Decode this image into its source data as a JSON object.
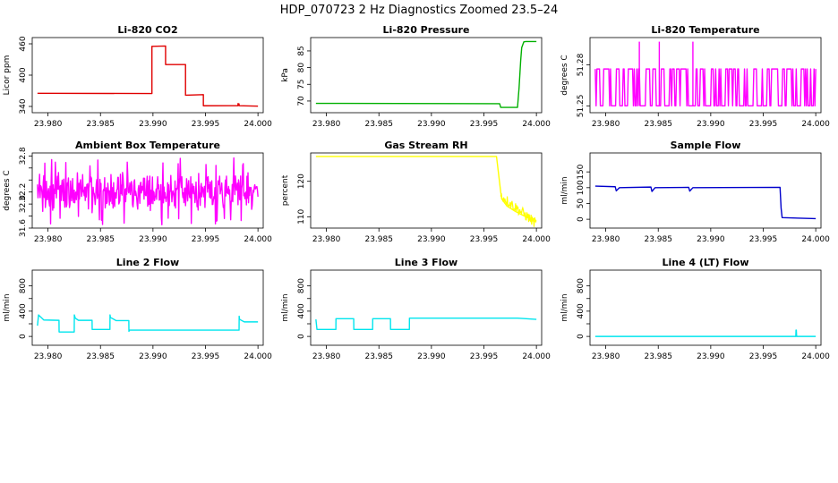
{
  "figure": {
    "title": "HDP_070723  2 Hz Diagnostics Zoomed 23.5–24"
  },
  "chart_data": [
    {
      "type": "line",
      "title": "Li-820 CO2",
      "ylabel": "Licor ppm",
      "color": "#e00000",
      "xlim": [
        23.9785,
        24.0005
      ],
      "ylim": [
        328,
        472
      ],
      "xticks": [
        23.98,
        23.985,
        23.99,
        23.995,
        24.0
      ],
      "xtick_labels": [
        "23.980",
        "23.985",
        "23.990",
        "23.995",
        "24.000"
      ],
      "yticks": [
        340,
        400,
        460
      ],
      "ytick_labels": [
        "340",
        "400",
        "460"
      ],
      "style": "step",
      "x": [
        23.979,
        23.9899,
        23.9899,
        23.9912,
        23.9912,
        23.9931,
        23.9931,
        23.9948,
        23.9948,
        23.9981,
        23.9981,
        23.9982,
        23.9982,
        24.0
      ],
      "y": [
        365,
        365,
        455,
        455,
        420,
        420,
        362,
        362,
        341,
        341,
        345,
        345,
        341,
        341
      ]
    },
    {
      "type": "line",
      "title": "Li-820 Pressure",
      "ylabel": "kPa",
      "color": "#00b000",
      "xlim": [
        23.9785,
        24.0005
      ],
      "ylim": [
        66.5,
        89
      ],
      "xticks": [
        23.98,
        23.985,
        23.99,
        23.995,
        24.0
      ],
      "xtick_labels": [
        "23.980",
        "23.985",
        "23.990",
        "23.995",
        "24.000"
      ],
      "yticks": [
        70,
        75,
        80,
        85
      ],
      "ytick_labels": [
        "70",
        "75",
        "80",
        "85"
      ],
      "x": [
        23.979,
        23.9965,
        23.9966,
        23.9982,
        23.99835,
        23.9985,
        23.9986,
        23.9988,
        23.999,
        24.0
      ],
      "y": [
        69.3,
        69.2,
        68.1,
        68.1,
        74,
        82,
        86,
        87.7,
        87.8,
        87.8
      ]
    },
    {
      "type": "line",
      "title": "Li-820 Temperature",
      "ylabel": "degrees C",
      "color": "#ff00ff",
      "xlim": [
        23.9785,
        24.0005
      ],
      "ylim": [
        51.245,
        51.3
      ],
      "xticks": [
        23.98,
        23.985,
        23.99,
        23.995,
        24.0
      ],
      "xtick_labels": [
        "23.980",
        "23.985",
        "23.990",
        "23.995",
        "24.000"
      ],
      "yticks": [
        51.25,
        51.28
      ],
      "ytick_labels": [
        "51.25",
        "51.28"
      ],
      "levels": [
        51.25,
        51.277
      ],
      "spike_value": 51.297,
      "spike_x": [
        23.9832,
        23.9851,
        23.9883
      ]
    },
    {
      "type": "line",
      "title": "Ambient Box Temperature",
      "ylabel": "degrees C",
      "color": "#ff00ff",
      "xlim": [
        23.9785,
        24.0005
      ],
      "ylim": [
        31.6,
        32.85
      ],
      "xticks": [
        23.98,
        23.985,
        23.99,
        23.995,
        24.0
      ],
      "xtick_labels": [
        "23.980",
        "23.985",
        "23.990",
        "23.995",
        "24.000"
      ],
      "yticks": [
        31.6,
        31.8,
        32.0,
        32.2,
        32.4,
        32.6,
        32.8
      ],
      "ytick_labels": [
        "31.6",
        "",
        "32.0",
        "32.2",
        "",
        "",
        "32.8"
      ],
      "mean": 32.2,
      "range": [
        31.65,
        32.78
      ]
    },
    {
      "type": "line",
      "title": "Gas Stream RH",
      "ylabel": "percent",
      "color": "#ffff00",
      "xlim": [
        23.9785,
        24.0005
      ],
      "ylim": [
        106.8,
        128
      ],
      "xticks": [
        23.98,
        23.985,
        23.99,
        23.995,
        24.0
      ],
      "xtick_labels": [
        "23.980",
        "23.985",
        "23.990",
        "23.995",
        "24.000"
      ],
      "yticks": [
        110,
        120
      ],
      "ytick_labels": [
        "110",
        "120"
      ],
      "x": [
        23.979,
        23.9962,
        23.9966,
        23.9967,
        23.9972,
        23.998,
        23.999,
        24.0
      ],
      "y": [
        127,
        127,
        117,
        115,
        113,
        111.5,
        110,
        108.5
      ]
    },
    {
      "type": "line",
      "title": "Sample Flow",
      "ylabel": "ml/min",
      "color": "#0000cc",
      "xlim": [
        23.9785,
        24.0005
      ],
      "ylim": [
        -28,
        210
      ],
      "xticks": [
        23.98,
        23.985,
        23.99,
        23.995,
        24.0
      ],
      "xtick_labels": [
        "23.980",
        "23.985",
        "23.990",
        "23.995",
        "24.000"
      ],
      "yticks": [
        0,
        50,
        100,
        150
      ],
      "ytick_labels": [
        "0",
        "50",
        "100",
        "150"
      ],
      "x": [
        23.979,
        23.9809,
        23.981,
        23.9813,
        23.9843,
        23.9844,
        23.9847,
        23.9879,
        23.988,
        23.9883,
        23.9966,
        23.9967,
        23.9968,
        24.0
      ],
      "y": [
        105,
        103,
        90,
        100,
        102,
        88,
        100,
        101,
        89,
        100,
        101,
        35,
        5,
        2
      ]
    },
    {
      "type": "line",
      "title": "Line 2 Flow",
      "ylabel": "ml/min",
      "color": "#00e5ee",
      "xlim": [
        23.9785,
        24.0005
      ],
      "ylim": [
        -140,
        1050
      ],
      "xticks": [
        23.98,
        23.985,
        23.99,
        23.995,
        24.0
      ],
      "xtick_labels": [
        "23.980",
        "23.985",
        "23.990",
        "23.995",
        "24.000"
      ],
      "yticks": [
        0,
        200,
        400,
        600,
        800
      ],
      "ytick_labels": [
        "0",
        "",
        "400",
        "",
        "800"
      ],
      "x": [
        23.979,
        23.9791,
        23.9796,
        23.98105,
        23.98106,
        23.9825,
        23.98251,
        23.9826,
        23.9829,
        23.9842,
        23.98421,
        23.98425,
        23.9848,
        23.9859,
        23.98591,
        23.98595,
        23.9865,
        23.9877,
        23.98771,
        23.98775,
        23.9885,
        23.9982,
        23.99821,
        23.99825,
        23.9987,
        24.0
      ],
      "y": [
        170,
        340,
        260,
        255,
        70,
        70,
        340,
        290,
        255,
        255,
        110,
        110,
        110,
        110,
        340,
        300,
        250,
        250,
        80,
        100,
        100,
        100,
        320,
        270,
        230,
        230
      ]
    },
    {
      "type": "line",
      "title": "Line 3 Flow",
      "ylabel": "ml/min",
      "color": "#00e5ee",
      "xlim": [
        23.9785,
        24.0005
      ],
      "ylim": [
        -140,
        1050
      ],
      "xticks": [
        23.98,
        23.985,
        23.99,
        23.995,
        24.0
      ],
      "xtick_labels": [
        "23.980",
        "23.985",
        "23.990",
        "23.995",
        "24.000"
      ],
      "yticks": [
        0,
        200,
        400,
        600,
        800
      ],
      "ytick_labels": [
        "0",
        "",
        "400",
        "",
        "800"
      ],
      "x": [
        23.979,
        23.9791,
        23.9809,
        23.98091,
        23.9826,
        23.98261,
        23.9844,
        23.98441,
        23.9861,
        23.98611,
        23.9879,
        23.98791,
        23.9982,
        24.0
      ],
      "y": [
        270,
        110,
        110,
        280,
        280,
        110,
        110,
        280,
        280,
        110,
        110,
        290,
        290,
        270
      ]
    },
    {
      "type": "line",
      "title": "Line 4 (LT) Flow",
      "ylabel": "ml/min",
      "color": "#00e5ee",
      "xlim": [
        23.9785,
        24.0005
      ],
      "ylim": [
        -140,
        1050
      ],
      "xticks": [
        23.98,
        23.985,
        23.99,
        23.995,
        24.0
      ],
      "xtick_labels": [
        "23.980",
        "23.985",
        "23.990",
        "23.995",
        "24.000"
      ],
      "yticks": [
        0,
        200,
        400,
        600,
        800
      ],
      "ytick_labels": [
        "0",
        "",
        "400",
        "",
        "800"
      ],
      "x": [
        23.979,
        23.9981,
        23.99812,
        23.99815,
        23.99818,
        24.0
      ],
      "y": [
        0,
        0,
        100,
        100,
        0,
        0
      ]
    }
  ]
}
